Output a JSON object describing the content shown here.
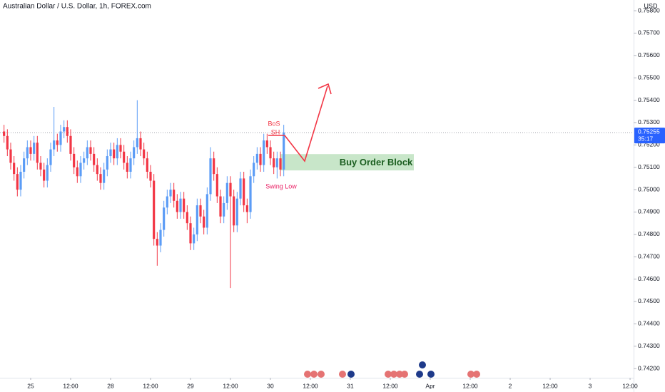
{
  "chart_data": {
    "type": "candlestick",
    "title": "Australian Dollar / U.S. Dollar, 1h, FOREX.com",
    "y_unit": "USD",
    "up_color": "#5b9cf6",
    "down_color": "#f23645",
    "x": [
      -8,
      -7,
      -6,
      -5,
      -4,
      -3,
      -2,
      -1,
      0,
      1,
      2,
      3,
      4,
      5,
      6,
      7,
      8,
      9,
      10,
      11,
      12,
      13,
      14,
      15,
      16,
      17,
      18,
      19,
      20,
      21,
      22,
      23,
      24,
      25,
      26,
      27,
      28,
      29,
      30,
      31,
      32,
      33,
      34,
      35,
      36,
      37,
      38,
      39,
      40,
      41,
      42,
      43,
      44,
      45,
      46,
      47,
      48,
      49,
      50,
      51,
      52,
      53,
      54,
      55,
      56,
      57,
      58,
      59,
      60,
      61,
      62,
      63,
      64,
      65,
      66,
      67,
      68,
      69,
      70,
      71,
      72,
      73,
      74,
      75,
      76
    ],
    "open": [
      0.7526,
      0.7524,
      0.7518,
      0.7512,
      0.7507,
      0.75,
      0.7508,
      0.7514,
      0.7519,
      0.7516,
      0.7521,
      0.7512,
      0.7509,
      0.7504,
      0.7511,
      0.7518,
      0.7522,
      0.752,
      0.7526,
      0.7528,
      0.7524,
      0.7516,
      0.751,
      0.7506,
      0.7512,
      0.7514,
      0.7519,
      0.7516,
      0.7511,
      0.7507,
      0.7503,
      0.7509,
      0.7515,
      0.7518,
      0.7514,
      0.752,
      0.7517,
      0.7512,
      0.7508,
      0.7514,
      0.7519,
      0.7523,
      0.7518,
      0.7514,
      0.7508,
      0.7504,
      0.7478,
      0.7475,
      0.7482,
      0.7492,
      0.7497,
      0.75,
      0.7495,
      0.749,
      0.7496,
      0.749,
      0.7485,
      0.7476,
      0.748,
      0.7493,
      0.7488,
      0.7483,
      0.7498,
      0.7514,
      0.7507,
      0.7497,
      0.7488,
      0.7494,
      0.7503,
      0.7497,
      0.7484,
      0.7496,
      0.7505,
      0.7493,
      0.749,
      0.7506,
      0.7512,
      0.7516,
      0.7511,
      0.7522,
      0.7519,
      0.7514,
      0.751,
      0.7514,
      0.7509
    ],
    "high": [
      0.7529,
      0.7527,
      0.7521,
      0.7515,
      0.751,
      0.7511,
      0.7517,
      0.7522,
      0.7522,
      0.7524,
      0.7524,
      0.7515,
      0.7512,
      0.7514,
      0.7521,
      0.7537,
      0.7525,
      0.7529,
      0.7531,
      0.7531,
      0.7527,
      0.7519,
      0.7513,
      0.7515,
      0.7517,
      0.7522,
      0.7522,
      0.7519,
      0.7514,
      0.751,
      0.7512,
      0.7518,
      0.7521,
      0.7521,
      0.7523,
      0.7523,
      0.752,
      0.7515,
      0.7517,
      0.7522,
      0.754,
      0.7526,
      0.7521,
      0.7517,
      0.7511,
      0.7507,
      0.7481,
      0.7485,
      0.7495,
      0.75,
      0.7503,
      0.7503,
      0.7498,
      0.7499,
      0.7499,
      0.7493,
      0.7488,
      0.7483,
      0.7496,
      0.7496,
      0.7491,
      0.7501,
      0.7519,
      0.7517,
      0.751,
      0.75,
      0.7497,
      0.7506,
      0.7506,
      0.75,
      0.7499,
      0.7508,
      0.7508,
      0.7496,
      0.7509,
      0.7515,
      0.7519,
      0.7519,
      0.7525,
      0.7525,
      0.7522,
      0.7517,
      0.7517,
      0.7517,
      0.7529
    ],
    "low": [
      0.7521,
      0.7515,
      0.7509,
      0.7504,
      0.7497,
      0.7497,
      0.7505,
      0.7511,
      0.7513,
      0.7513,
      0.7509,
      0.7506,
      0.7501,
      0.7501,
      0.7508,
      0.7515,
      0.7517,
      0.7517,
      0.7523,
      0.7521,
      0.7513,
      0.7507,
      0.7503,
      0.7503,
      0.7509,
      0.7511,
      0.7513,
      0.7508,
      0.7504,
      0.75,
      0.75,
      0.7506,
      0.7512,
      0.7511,
      0.7511,
      0.7514,
      0.7509,
      0.7505,
      0.7505,
      0.7511,
      0.7516,
      0.7515,
      0.7511,
      0.7505,
      0.7501,
      0.7475,
      0.7466,
      0.7472,
      0.7479,
      0.7489,
      0.7494,
      0.7492,
      0.7487,
      0.7487,
      0.7487,
      0.7482,
      0.7473,
      0.7473,
      0.7477,
      0.7485,
      0.748,
      0.748,
      0.7495,
      0.7504,
      0.7494,
      0.7485,
      0.7485,
      0.7491,
      0.7456,
      0.7481,
      0.7481,
      0.7493,
      0.749,
      0.7485,
      0.7487,
      0.7503,
      0.7509,
      0.7508,
      0.7508,
      0.7516,
      0.7511,
      0.7507,
      0.7505,
      0.7506,
      0.7506
    ],
    "close": [
      0.7524,
      0.7518,
      0.7512,
      0.7507,
      0.75,
      0.7508,
      0.7514,
      0.7519,
      0.7516,
      0.7521,
      0.7512,
      0.7509,
      0.7504,
      0.7511,
      0.7518,
      0.7522,
      0.752,
      0.7526,
      0.7528,
      0.7524,
      0.7516,
      0.751,
      0.7506,
      0.7512,
      0.7514,
      0.7519,
      0.7516,
      0.7511,
      0.7507,
      0.7503,
      0.7509,
      0.7515,
      0.7518,
      0.7514,
      0.752,
      0.7517,
      0.7512,
      0.7508,
      0.7514,
      0.7519,
      0.7523,
      0.7518,
      0.7514,
      0.7508,
      0.7504,
      0.7478,
      0.7475,
      0.7482,
      0.7492,
      0.7497,
      0.75,
      0.7495,
      0.749,
      0.7496,
      0.749,
      0.7485,
      0.7476,
      0.748,
      0.7493,
      0.7488,
      0.7483,
      0.7498,
      0.7514,
      0.7507,
      0.7497,
      0.7488,
      0.7494,
      0.7503,
      0.7497,
      0.7484,
      0.7496,
      0.7505,
      0.7493,
      0.749,
      0.7506,
      0.7512,
      0.7516,
      0.7511,
      0.7522,
      0.7519,
      0.7514,
      0.751,
      0.7514,
      0.7509,
      0.75255
    ],
    "xlim": [
      -9.21,
      181.06
    ],
    "xticks": [
      {
        "value": 0,
        "label": "25"
      },
      {
        "value": 12,
        "label": "12:00"
      },
      {
        "value": 24,
        "label": "28"
      },
      {
        "value": 36,
        "label": "12:00"
      },
      {
        "value": 48,
        "label": "29"
      },
      {
        "value": 60,
        "label": "12:00"
      },
      {
        "value": 72,
        "label": "30"
      },
      {
        "value": 84,
        "label": "12:00"
      },
      {
        "value": 96,
        "label": "31"
      },
      {
        "value": 108,
        "label": "12:00"
      },
      {
        "value": 120,
        "label": "Apr"
      },
      {
        "value": 132,
        "label": "12:00"
      },
      {
        "value": 144,
        "label": "2"
      },
      {
        "value": 156,
        "label": "12:00"
      },
      {
        "value": 168,
        "label": "3"
      },
      {
        "value": 180,
        "label": "12:00"
      }
    ],
    "ylim": [
      0.74159,
      0.75848
    ],
    "yticks": [
      {
        "value": 0.758,
        "label": "0.75800"
      },
      {
        "value": 0.757,
        "label": "0.75700"
      },
      {
        "value": 0.756,
        "label": "0.75600"
      },
      {
        "value": 0.755,
        "label": "0.75500"
      },
      {
        "value": 0.754,
        "label": "0.75400"
      },
      {
        "value": 0.753,
        "label": "0.75300"
      },
      {
        "value": 0.752,
        "label": "0.75200"
      },
      {
        "value": 0.751,
        "label": "0.75100"
      },
      {
        "value": 0.75,
        "label": "0.75000"
      },
      {
        "value": 0.749,
        "label": "0.74900"
      },
      {
        "value": 0.748,
        "label": "0.74800"
      },
      {
        "value": 0.747,
        "label": "0.74700"
      },
      {
        "value": 0.746,
        "label": "0.74600"
      },
      {
        "value": 0.745,
        "label": "0.74500"
      },
      {
        "value": 0.744,
        "label": "0.74400"
      },
      {
        "value": 0.743,
        "label": "0.74300"
      },
      {
        "value": 0.742,
        "label": "0.74200"
      }
    ],
    "last_price": {
      "value": 0.75255,
      "label": "0.75255"
    },
    "countdown": "35:17",
    "annotations": {
      "bos": "BoS",
      "sh": "SH",
      "swing_low": "Swing Low",
      "order_block": "Buy Order Block"
    },
    "order_block_zone": [
      0.75086,
      0.75159
    ]
  }
}
